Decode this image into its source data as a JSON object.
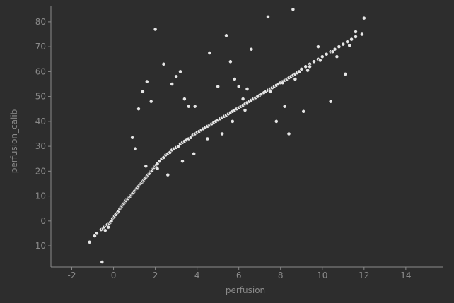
{
  "chart_data": {
    "type": "scatter",
    "xlabel": "perfusion",
    "ylabel": "perfusion_calib",
    "xlim": [
      -3.0,
      15.8
    ],
    "ylim": [
      -18.5,
      86.5
    ],
    "xticks": [
      -2,
      0,
      2,
      4,
      6,
      8,
      10,
      12,
      14
    ],
    "yticks": [
      -10,
      0,
      10,
      20,
      30,
      40,
      50,
      60,
      70,
      80
    ],
    "grid": false,
    "legend": "none",
    "colors": {
      "background": "#2d2d2d",
      "point": "#e6e6e6",
      "axis": "#8a8a8a"
    },
    "x": [
      -1.15,
      -0.9,
      -0.8,
      -0.6,
      -0.5,
      -0.45,
      -0.4,
      -0.35,
      -0.3,
      -0.25,
      -0.2,
      -0.15,
      -0.1,
      -0.05,
      0.0,
      0.05,
      0.1,
      0.15,
      0.2,
      0.25,
      0.3,
      0.35,
      0.4,
      0.45,
      0.5,
      0.55,
      0.6,
      0.65,
      0.7,
      0.75,
      0.8,
      0.85,
      0.9,
      0.95,
      1.0,
      1.05,
      1.1,
      1.15,
      1.2,
      1.25,
      1.3,
      1.35,
      1.4,
      1.45,
      1.5,
      1.55,
      1.6,
      1.65,
      1.7,
      1.75,
      1.8,
      1.85,
      1.9,
      1.95,
      2.0,
      2.05,
      2.1,
      2.2,
      2.3,
      2.4,
      2.5,
      2.6,
      2.7,
      2.8,
      2.9,
      3.0,
      3.1,
      3.2,
      3.3,
      3.4,
      3.5,
      3.6,
      3.7,
      3.8,
      3.9,
      4.0,
      4.1,
      4.2,
      4.3,
      4.4,
      4.5,
      4.6,
      4.7,
      4.8,
      4.9,
      5.0,
      5.1,
      5.2,
      5.3,
      5.4,
      5.5,
      5.6,
      5.7,
      5.8,
      5.9,
      6.0,
      6.1,
      6.2,
      6.3,
      6.4,
      6.5,
      6.6,
      6.7,
      6.8,
      6.9,
      7.0,
      7.1,
      7.2,
      7.3,
      7.4,
      7.5,
      7.6,
      7.7,
      7.8,
      7.9,
      8.0,
      8.1,
      8.2,
      8.3,
      8.4,
      8.5,
      8.6,
      8.7,
      8.8,
      8.9,
      9.0,
      9.2,
      9.4,
      9.6,
      9.8,
      10.0,
      10.2,
      10.4,
      10.6,
      10.8,
      11.0,
      11.2,
      11.4,
      11.6,
      11.9,
      -0.55,
      0.9,
      1.2,
      1.4,
      1.6,
      1.8,
      2.0,
      2.4,
      2.8,
      3.0,
      3.2,
      3.4,
      3.6,
      3.9,
      4.6,
      5.0,
      5.4,
      5.6,
      5.8,
      6.0,
      6.2,
      6.4,
      6.6,
      7.4,
      7.8,
      8.2,
      8.4,
      8.6,
      9.1,
      9.4,
      9.8,
      10.4,
      10.7,
      11.1,
      11.6,
      12.0,
      1.05,
      1.55,
      2.1,
      2.6,
      3.3,
      3.85,
      4.5,
      5.2,
      5.7,
      6.3,
      6.9,
      7.5,
      8.1,
      8.7,
      9.3,
      9.9,
      10.5,
      11.3
    ],
    "y": [
      -8.5,
      -6.0,
      -5.0,
      -3.5,
      -3.0,
      -2.5,
      -3.8,
      -2.0,
      -1.5,
      -2.5,
      -1.0,
      -0.5,
      0.0,
      1.0,
      1.5,
      2.0,
      2.5,
      3.0,
      3.5,
      4.0,
      4.8,
      5.5,
      6.0,
      6.5,
      7.0,
      7.5,
      8.2,
      8.8,
      9.0,
      9.5,
      10.0,
      10.5,
      11.0,
      11.3,
      12.0,
      12.5,
      13.0,
      13.2,
      14.0,
      14.5,
      15.0,
      15.3,
      16.0,
      16.5,
      17.0,
      17.4,
      18.0,
      18.5,
      19.0,
      19.5,
      20.0,
      20.3,
      21.0,
      21.5,
      22.0,
      22.5,
      23.0,
      24.0,
      25.0,
      25.5,
      26.5,
      27.0,
      27.5,
      28.5,
      29.0,
      29.5,
      30.0,
      31.0,
      31.5,
      32.0,
      32.5,
      33.0,
      33.5,
      34.5,
      35.0,
      35.5,
      36.0,
      36.5,
      37.0,
      37.5,
      38.0,
      38.5,
      39.0,
      39.5,
      40.0,
      40.5,
      41.0,
      41.5,
      42.0,
      42.5,
      43.0,
      43.5,
      44.0,
      44.5,
      45.0,
      45.5,
      46.0,
      46.5,
      47.0,
      47.5,
      48.0,
      48.5,
      49.0,
      49.5,
      50.0,
      50.5,
      51.0,
      51.5,
      52.0,
      52.5,
      53.0,
      53.5,
      54.0,
      54.5,
      55.0,
      55.5,
      56.0,
      56.5,
      57.0,
      57.5,
      58.0,
      58.5,
      59.0,
      59.5,
      60.0,
      61.0,
      62.0,
      63.0,
      64.0,
      65.0,
      66.0,
      67.0,
      68.0,
      69.0,
      70.0,
      71.0,
      72.0,
      73.0,
      74.0,
      75.0,
      -16.5,
      33.5,
      45.0,
      52.0,
      56.0,
      48.0,
      77.0,
      63.0,
      55.0,
      58.0,
      60.0,
      49.0,
      46.0,
      46.0,
      67.5,
      54.0,
      74.5,
      64.0,
      57.0,
      54.0,
      49.0,
      53.0,
      69.0,
      82.0,
      40.0,
      46.0,
      35.0,
      85.0,
      44.0,
      62.0,
      70.0,
      48.0,
      66.0,
      59.0,
      76.0,
      81.5,
      29.0,
      22.0,
      21.0,
      18.5,
      24.0,
      27.0,
      33.0,
      35.0,
      40.0,
      44.5,
      50.0,
      52.0,
      55.5,
      57.0,
      60.5,
      64.5,
      68.0,
      70.5
    ]
  }
}
